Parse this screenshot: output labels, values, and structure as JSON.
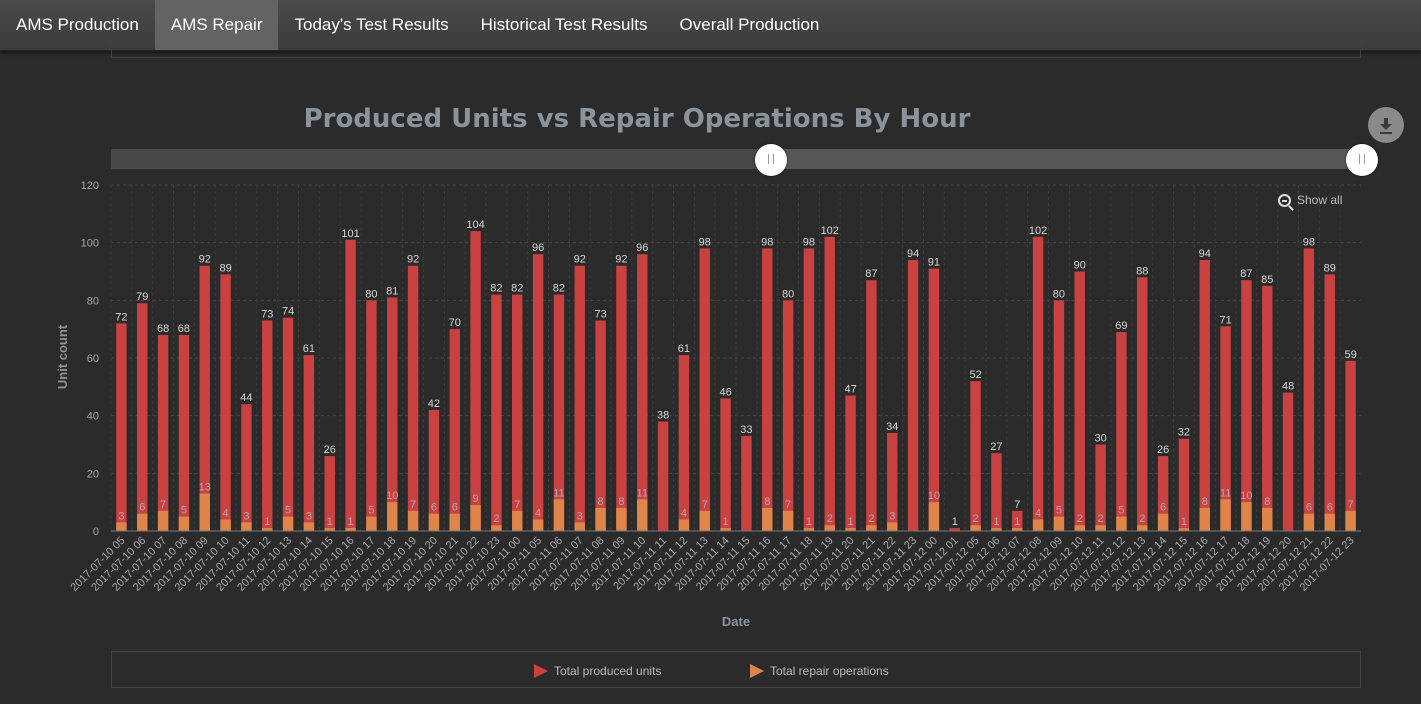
{
  "nav": {
    "tabs": [
      {
        "label": "AMS Production",
        "active": false
      },
      {
        "label": "AMS Repair",
        "active": true
      },
      {
        "label": "Today's Test Results",
        "active": false
      },
      {
        "label": "Historical Test Results",
        "active": false
      },
      {
        "label": "Overall Production",
        "active": false
      }
    ]
  },
  "controls": {
    "show_all_label": "Show all",
    "download_icon": "download-icon"
  },
  "chart_data": {
    "type": "bar",
    "title": "Produced Units vs Repair Operations By Hour",
    "xlabel": "Date",
    "ylabel": "Unit count",
    "ylim": [
      0,
      120
    ],
    "yticks": [
      0,
      20,
      40,
      60,
      80,
      100,
      120
    ],
    "grid": true,
    "legend_position": "bottom",
    "categories": [
      "2017-07-10 05",
      "2017-07-10 06",
      "2017-07-10 07",
      "2017-07-10 08",
      "2017-07-10 09",
      "2017-07-10 10",
      "2017-07-10 11",
      "2017-07-10 12",
      "2017-07-10 13",
      "2017-07-10 14",
      "2017-07-10 15",
      "2017-07-10 16",
      "2017-07-10 17",
      "2017-07-10 18",
      "2017-07-10 19",
      "2017-07-10 20",
      "2017-07-10 21",
      "2017-07-10 22",
      "2017-07-10 23",
      "2017-07-11 00",
      "2017-07-11 05",
      "2017-07-11 06",
      "2017-07-11 07",
      "2017-07-11 08",
      "2017-07-11 09",
      "2017-07-11 10",
      "2017-07-11 11",
      "2017-07-11 12",
      "2017-07-11 13",
      "2017-07-11 14",
      "2017-07-11 15",
      "2017-07-11 16",
      "2017-07-11 17",
      "2017-07-11 18",
      "2017-07-11 19",
      "2017-07-11 20",
      "2017-07-11 21",
      "2017-07-11 22",
      "2017-07-11 23",
      "2017-07-12 00",
      "2017-07-12 01",
      "2017-07-12 05",
      "2017-07-12 06",
      "2017-07-12 07",
      "2017-07-12 08",
      "2017-07-12 09",
      "2017-07-12 10",
      "2017-07-12 11",
      "2017-07-12 12",
      "2017-07-12 13",
      "2017-07-12 14",
      "2017-07-12 15",
      "2017-07-12 16",
      "2017-07-12 17",
      "2017-07-12 18",
      "2017-07-12 19",
      "2017-07-12 20",
      "2017-07-12 21",
      "2017-07-12 22",
      "2017-07-12 23"
    ],
    "series": [
      {
        "name": "Total produced units",
        "color": "#c94141",
        "values": [
          72,
          79,
          68,
          68,
          92,
          89,
          44,
          73,
          74,
          61,
          26,
          101,
          80,
          81,
          92,
          42,
          70,
          104,
          82,
          82,
          96,
          82,
          92,
          73,
          92,
          96,
          38,
          61,
          98,
          46,
          33,
          98,
          80,
          98,
          102,
          47,
          87,
          34,
          94,
          91,
          1,
          52,
          27,
          7,
          102,
          80,
          90,
          30,
          69,
          88,
          26,
          32,
          94,
          71,
          87,
          85,
          48,
          98,
          89,
          59
        ]
      },
      {
        "name": "Total repair operations",
        "color": "#e0854a",
        "values": [
          3,
          6,
          7,
          5,
          13,
          4,
          3,
          1,
          5,
          3,
          1,
          1,
          5,
          10,
          7,
          6,
          6,
          9,
          2,
          7,
          4,
          11,
          3,
          8,
          8,
          11,
          null,
          4,
          7,
          1,
          null,
          8,
          7,
          1,
          2,
          1,
          2,
          3,
          null,
          10,
          null,
          2,
          1,
          1,
          4,
          5,
          2,
          2,
          5,
          2,
          6,
          1,
          8,
          11,
          10,
          8,
          null,
          6,
          6,
          7
        ]
      }
    ]
  }
}
